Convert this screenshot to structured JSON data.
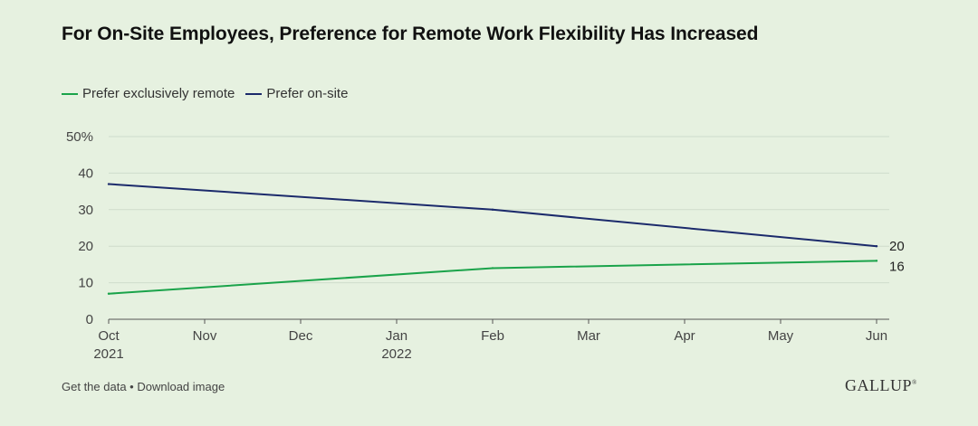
{
  "title": "For On-Site Employees, Preference for Remote Work Flexibility Has Increased",
  "colors": {
    "remote": "#1aa34a",
    "onsite": "#1b2a6b",
    "grid": "#cfdccb",
    "axis": "#555555",
    "text": "#444444"
  },
  "chart_data": {
    "type": "line",
    "x": [
      "Oct 2021",
      "Nov",
      "Dec",
      "Jan 2022",
      "Feb",
      "Mar",
      "Apr",
      "May",
      "Jun"
    ],
    "x_tick_labels": [
      [
        "Oct",
        "2021"
      ],
      [
        "Nov"
      ],
      [
        "Dec"
      ],
      [
        "Jan",
        "2022"
      ],
      [
        "Feb"
      ],
      [
        "Mar"
      ],
      [
        "Apr"
      ],
      [
        "May"
      ],
      [
        "Jun"
      ]
    ],
    "series": [
      {
        "name": "Prefer exclusively remote",
        "color": "#1aa34a",
        "points": [
          {
            "x": "Oct 2021",
            "y": 7
          },
          {
            "x": "Feb",
            "y": 14
          },
          {
            "x": "Jun",
            "y": 16
          }
        ],
        "end_label": "16"
      },
      {
        "name": "Prefer on-site",
        "color": "#1b2a6b",
        "points": [
          {
            "x": "Oct 2021",
            "y": 37
          },
          {
            "x": "Feb",
            "y": 30
          },
          {
            "x": "Jun",
            "y": 20
          }
        ],
        "end_label": "20"
      }
    ],
    "yticks": [
      0,
      10,
      20,
      30,
      40,
      50
    ],
    "ytick_labels": [
      "0",
      "10",
      "20",
      "30",
      "40",
      "50%"
    ],
    "ylim": [
      0,
      50
    ],
    "grid": true,
    "legend_position": "top-left"
  },
  "footer": {
    "get_data": "Get the data",
    "separator": " • ",
    "download": "Download image"
  },
  "brand": "GALLUP",
  "brand_mark": "®"
}
